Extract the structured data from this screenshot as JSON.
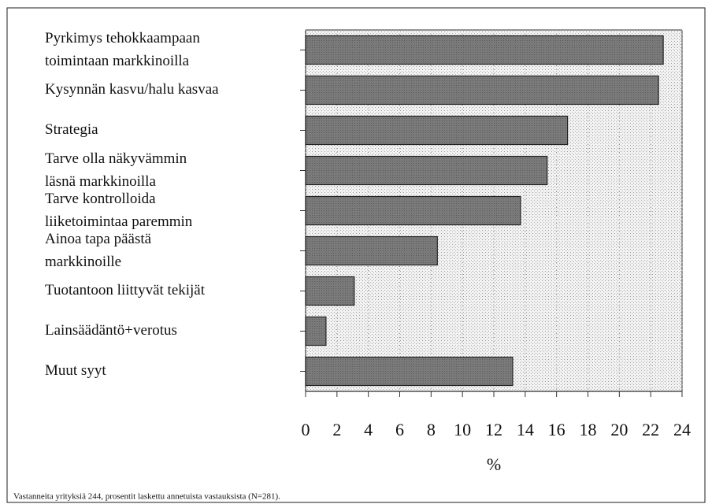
{
  "chart_data": {
    "type": "hbar",
    "categories": [
      [
        "Pyrkimys tehokkaampaan",
        "toimintaan markkinoilla"
      ],
      [
        "Kysynnän kasvu/halu kasvaa"
      ],
      [
        "Strategia"
      ],
      [
        "Tarve olla näkyvämmin",
        "läsnä markkinoilla"
      ],
      [
        "Tarve kontrolloida",
        "liiketoimintaa paremmin"
      ],
      [
        "Ainoa tapa päästä",
        "markkinoille"
      ],
      [
        "Tuotantoon liittyvät tekijät"
      ],
      [
        "Lainsäädäntö+verotus"
      ],
      [
        "Muut syyt"
      ]
    ],
    "values": [
      22.8,
      22.5,
      16.7,
      15.4,
      13.7,
      8.4,
      3.1,
      1.3,
      13.2
    ],
    "color": "#7a7a7a",
    "xlim": [
      0,
      24
    ],
    "xticks": [
      0,
      2,
      4,
      6,
      8,
      10,
      12,
      14,
      16,
      18,
      20,
      22,
      24
    ],
    "grid": true,
    "x_label": "%",
    "footnote": "Vastanneita yrityksiä 244, prosentit laskettu annetuista vastauksista (N=281)."
  }
}
